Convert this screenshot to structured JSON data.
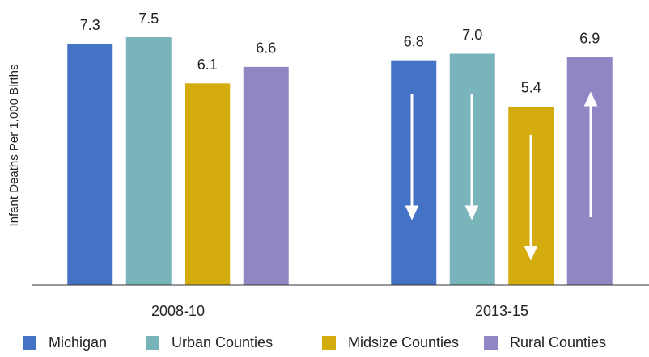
{
  "chart_data": {
    "type": "bar",
    "y_label": "Infant Deaths Per 1,000 Births",
    "categories": [
      "2008-10",
      "2013-15"
    ],
    "series": [
      {
        "name": "Michigan",
        "color": "#4472c4",
        "values": [
          7.3,
          6.8
        ],
        "value_labels": [
          "7.3",
          "6.8"
        ]
      },
      {
        "name": "Urban Counties",
        "color": "#7ab4bb",
        "values": [
          7.5,
          7.0
        ],
        "value_labels": [
          "7.5",
          "7.0"
        ]
      },
      {
        "name": "Midsize Counties",
        "color": "#d4ac0d",
        "values": [
          6.1,
          5.4
        ],
        "value_labels": [
          "6.1",
          "5.4"
        ]
      },
      {
        "name": "Rural Counties",
        "color": "#8f87c4",
        "values": [
          6.6,
          6.9
        ],
        "value_labels": [
          "6.6",
          "6.9"
        ]
      }
    ],
    "ylim": [
      0,
      8.6
    ]
  }
}
